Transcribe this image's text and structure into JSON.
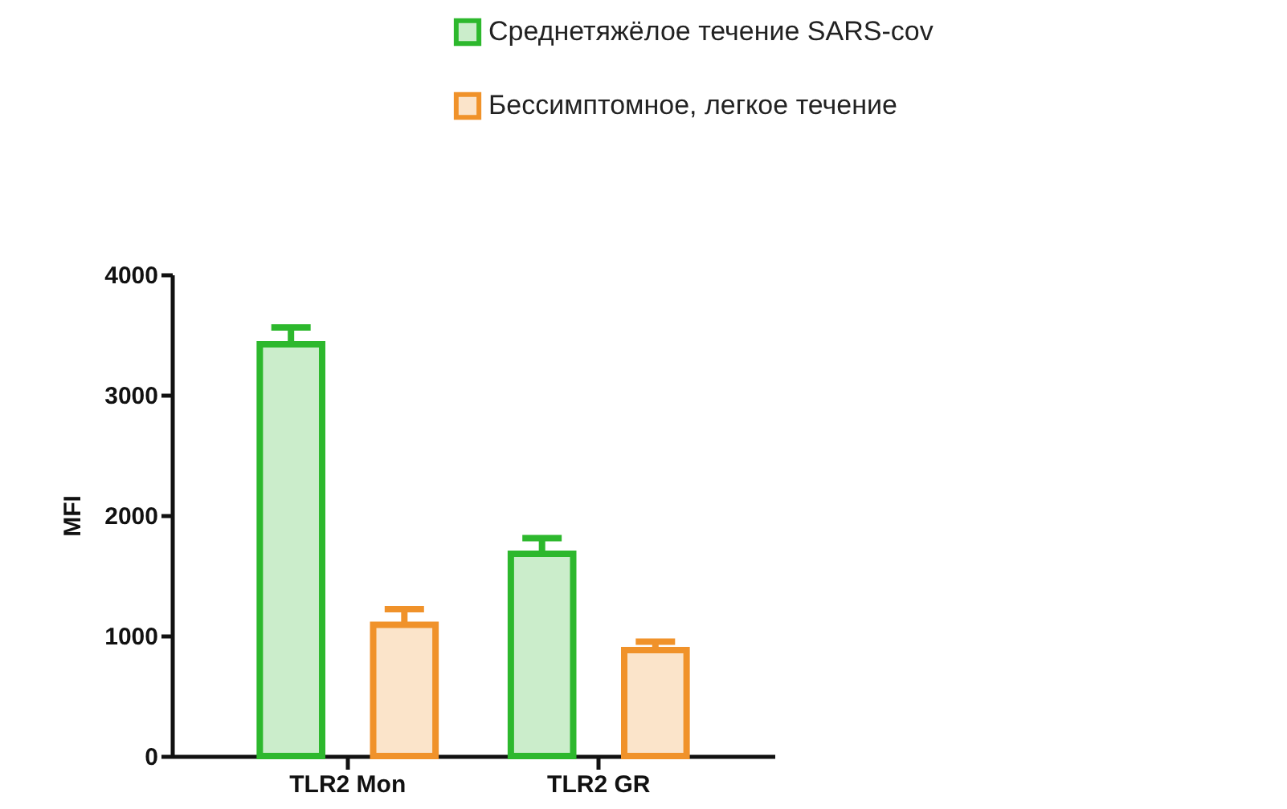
{
  "chart_data": {
    "type": "bar",
    "ylabel": "MFI",
    "categories": [
      "TLR2 Mon",
      "TLR2 GR"
    ],
    "series": [
      {
        "name": "Среднетяжёлое течение SARS-cov",
        "color": "#2db82d",
        "values": [
          3420,
          1680
        ],
        "errors": [
          140,
          130
        ]
      },
      {
        "name": "Бессимптомное, легкое течение",
        "color": "#f0922a",
        "values": [
          1090,
          880
        ],
        "errors": [
          130,
          70
        ]
      }
    ],
    "ylim": [
      0,
      4000
    ],
    "yticks": [
      0,
      1000,
      2000,
      3000,
      4000
    ],
    "legend": "top right"
  }
}
